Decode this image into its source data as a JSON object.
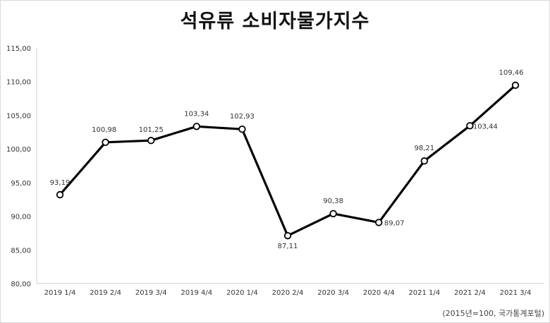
{
  "chart_data": {
    "type": "line",
    "title": "석유류 소비자물가지수",
    "categories": [
      "2019 1/4",
      "2019 2/4",
      "2019 3/4",
      "2019 4/4",
      "2020 1/4",
      "2020 2/4",
      "2020 3/4",
      "2020 4/4",
      "2021 1/4",
      "2021 2/4",
      "2021 3/4"
    ],
    "values": [
      93.19,
      100.98,
      101.25,
      103.34,
      102.93,
      87.11,
      90.38,
      89.07,
      98.21,
      103.44,
      109.46
    ],
    "value_labels": [
      "93,19",
      "100,98",
      "101,25",
      "103,34",
      "102,93",
      "87,11",
      "90,38",
      "89,07",
      "98,21",
      "103,44",
      "109,46"
    ],
    "yticks": [
      80,
      85,
      90,
      95,
      100,
      105,
      110,
      115
    ],
    "ytick_labels": [
      "80,00",
      "85,00",
      "90,00",
      "95,00",
      "100,00",
      "105,00",
      "110,00",
      "115,00"
    ],
    "ylim": [
      80,
      115
    ],
    "xlabel": "",
    "ylabel": "",
    "grid": false,
    "line_color": "#000000",
    "marker_fill": "#ffffff"
  },
  "source_note": "(2015년=100, 국가통계포털)"
}
